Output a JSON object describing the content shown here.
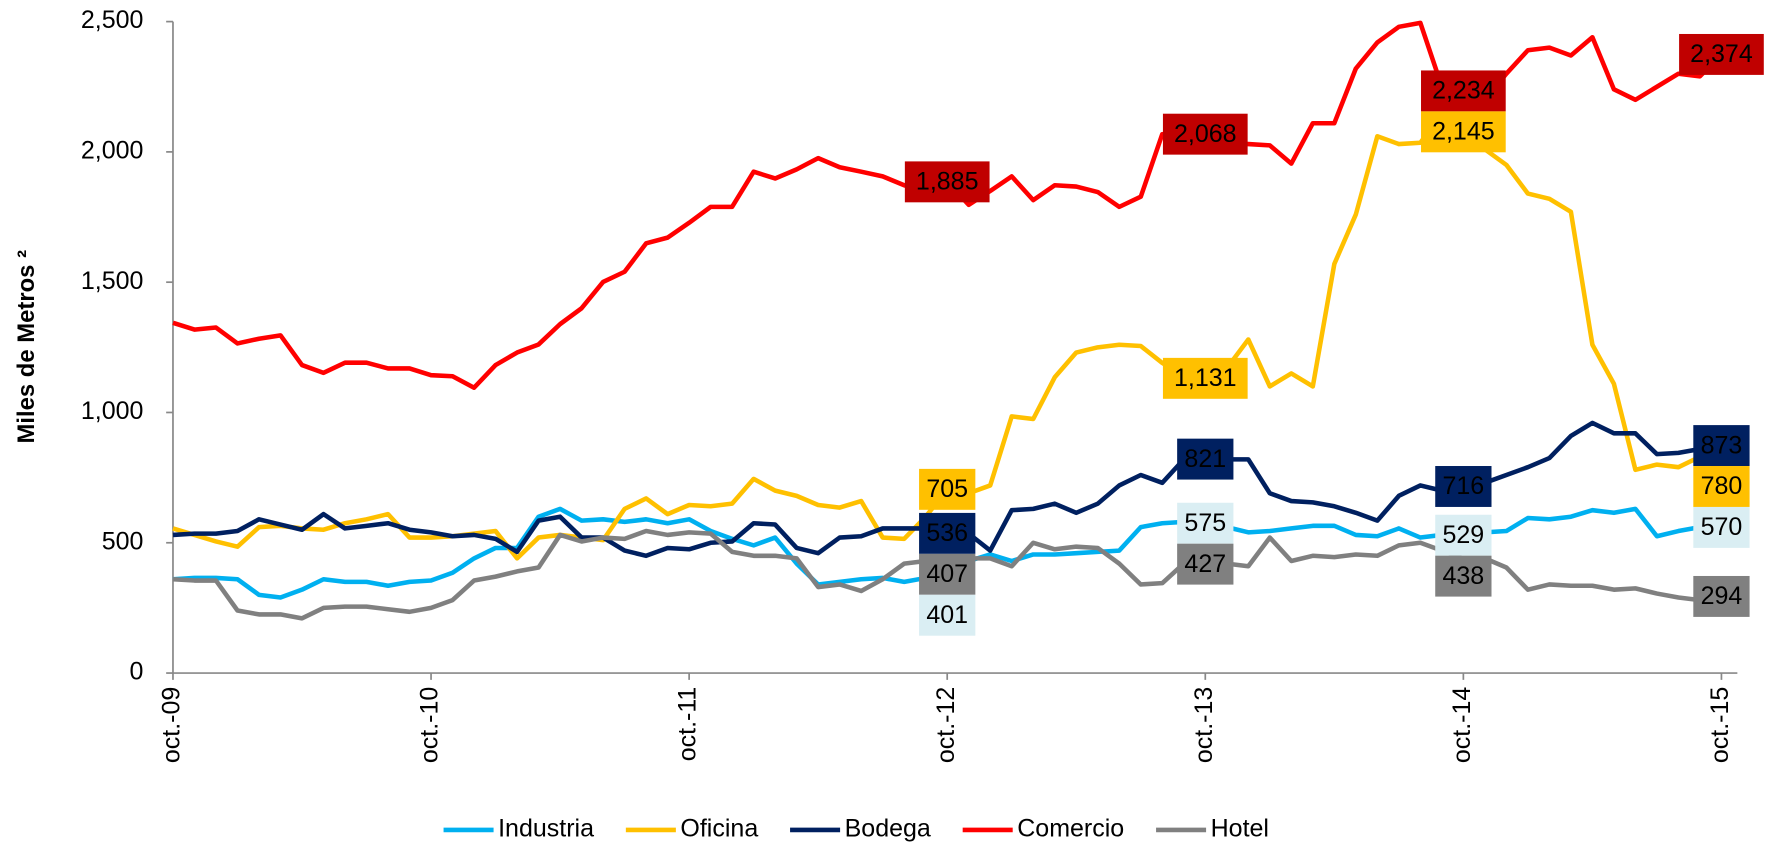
{
  "chart_data": {
    "type": "line",
    "y_label": "Miles de Metros ²",
    "categories": [
      "oct.-09",
      null,
      null,
      null,
      null,
      null,
      null,
      null,
      null,
      null,
      null,
      null,
      "oct.-10",
      null,
      null,
      null,
      null,
      null,
      null,
      null,
      null,
      null,
      null,
      null,
      "oct.-11",
      null,
      null,
      null,
      null,
      null,
      null,
      null,
      null,
      null,
      null,
      null,
      "oct.-12",
      null,
      null,
      null,
      null,
      null,
      null,
      null,
      null,
      null,
      null,
      null,
      "oct.-13",
      null,
      null,
      null,
      null,
      null,
      null,
      null,
      null,
      null,
      null,
      null,
      "oct.-14",
      null,
      null,
      null,
      null,
      null,
      null,
      null,
      null,
      null,
      null,
      null,
      "oct.-15"
    ],
    "ylim": [
      0,
      2500
    ],
    "yticks": [
      0,
      {
        "value": 500,
        "label": "500"
      },
      {
        "value": 1000,
        "label": "1,000"
      },
      {
        "value": 1500,
        "label": "1,500"
      },
      {
        "value": 2000,
        "label": "2,000"
      },
      {
        "value": 2500,
        "label": "2,500"
      }
    ],
    "grid": false,
    "legend": "bottom",
    "series": [
      {
        "name": "Industria",
        "color": "#00b0f0",
        "label_fill": "#daeef3",
        "label_text": "#000000",
        "values": [
          360,
          365,
          365,
          360,
          300,
          290,
          320,
          360,
          350,
          350,
          335,
          350,
          355,
          385,
          440,
          480,
          480,
          600,
          630,
          585,
          590,
          580,
          590,
          575,
          590,
          545,
          515,
          490,
          520,
          420,
          340,
          350,
          360,
          365,
          350,
          365,
          401,
          430,
          455,
          430,
          455,
          455,
          460,
          465,
          470,
          560,
          575,
          580,
          575,
          560,
          540,
          545,
          555,
          565,
          565,
          530,
          525,
          555,
          520,
          530,
          529,
          540,
          545,
          595,
          590,
          600,
          625,
          615,
          630,
          525,
          545,
          560,
          570
        ],
        "value_labels": [
          null,
          null,
          null,
          null,
          null,
          null,
          null,
          null,
          null,
          null,
          null,
          null,
          null,
          null,
          null,
          null,
          null,
          null,
          null,
          null,
          null,
          null,
          null,
          null,
          null,
          null,
          null,
          null,
          null,
          null,
          null,
          null,
          null,
          null,
          null,
          null,
          "401",
          null,
          null,
          null,
          null,
          null,
          null,
          null,
          null,
          null,
          null,
          null,
          "575",
          null,
          null,
          null,
          null,
          null,
          null,
          null,
          null,
          null,
          null,
          null,
          "529",
          null,
          null,
          null,
          null,
          null,
          null,
          null,
          null,
          null,
          null,
          null,
          "570"
        ]
      },
      {
        "name": "Oficina",
        "color": "#ffc000",
        "label_fill": "#ffc000",
        "label_text": "#000000",
        "values": [
          555,
          530,
          505,
          485,
          560,
          565,
          555,
          550,
          575,
          590,
          610,
          520,
          520,
          525,
          535,
          545,
          440,
          520,
          530,
          520,
          510,
          630,
          670,
          610,
          645,
          640,
          650,
          745,
          700,
          680,
          645,
          635,
          660,
          520,
          515,
          600,
          705,
          690,
          720,
          985,
          975,
          1135,
          1230,
          1250,
          1260,
          1255,
          1190,
          1140,
          1131,
          1170,
          1280,
          1100,
          1150,
          1100,
          1570,
          1760,
          2060,
          2030,
          2035,
          2145,
          2145,
          2010,
          1950,
          1840,
          1820,
          1770,
          1260,
          1110,
          780,
          800,
          790,
          830,
          780
        ],
        "value_labels": [
          null,
          null,
          null,
          null,
          null,
          null,
          null,
          null,
          null,
          null,
          null,
          null,
          null,
          null,
          null,
          null,
          null,
          null,
          null,
          null,
          null,
          null,
          null,
          null,
          null,
          null,
          null,
          null,
          null,
          null,
          null,
          null,
          null,
          null,
          null,
          null,
          "705",
          null,
          null,
          null,
          null,
          null,
          null,
          null,
          null,
          null,
          null,
          null,
          "1,131",
          null,
          null,
          null,
          null,
          null,
          null,
          null,
          null,
          null,
          null,
          null,
          "2,145",
          null,
          null,
          null,
          null,
          null,
          null,
          null,
          null,
          null,
          null,
          null,
          "780"
        ]
      },
      {
        "name": "Bodega",
        "color": "#002060",
        "label_fill": "#002060",
        "label_text": "#ffffff",
        "values": [
          530,
          535,
          535,
          545,
          590,
          570,
          550,
          610,
          555,
          565,
          575,
          550,
          540,
          525,
          530,
          515,
          465,
          585,
          600,
          520,
          520,
          470,
          450,
          480,
          475,
          500,
          505,
          575,
          570,
          480,
          460,
          520,
          525,
          555,
          555,
          555,
          536,
          535,
          470,
          625,
          630,
          650,
          615,
          650,
          720,
          760,
          730,
          820,
          821,
          820,
          820,
          690,
          660,
          655,
          640,
          615,
          585,
          680,
          720,
          700,
          716,
          730,
          760,
          790,
          825,
          910,
          960,
          920,
          920,
          840,
          845,
          860,
          873
        ],
        "value_labels": [
          null,
          null,
          null,
          null,
          null,
          null,
          null,
          null,
          null,
          null,
          null,
          null,
          null,
          null,
          null,
          null,
          null,
          null,
          null,
          null,
          null,
          null,
          null,
          null,
          null,
          null,
          null,
          null,
          null,
          null,
          null,
          null,
          null,
          null,
          null,
          null,
          "536",
          null,
          null,
          null,
          null,
          null,
          null,
          null,
          null,
          null,
          null,
          null,
          "821",
          null,
          null,
          null,
          null,
          null,
          null,
          null,
          null,
          null,
          null,
          null,
          "716",
          null,
          null,
          null,
          null,
          null,
          null,
          null,
          null,
          null,
          null,
          null,
          "873"
        ]
      },
      {
        "name": "Comercio",
        "color": "#ff0000",
        "label_fill": "#c00000",
        "label_text": "#ffffff",
        "values": [
          1344,
          1318,
          1326,
          1265,
          1283,
          1296,
          1182,
          1152,
          1191,
          1191,
          1169,
          1169,
          1143,
          1139,
          1095,
          1182,
          1230,
          1261,
          1339,
          1400,
          1501,
          1540,
          1649,
          1671,
          1728,
          1789,
          1789,
          1924,
          1898,
          1933,
          1976,
          1941,
          1924,
          1906,
          1872,
          1850,
          1885,
          1797,
          1850,
          1906,
          1815,
          1872,
          1867,
          1846,
          1789,
          1828,
          2068,
          2040,
          2068,
          2035,
          2030,
          2025,
          1955,
          2110,
          2110,
          2320,
          2420,
          2480,
          2495,
          2250,
          2234,
          2200,
          2300,
          2390,
          2400,
          2370,
          2440,
          2240,
          2200,
          2250,
          2300,
          2290,
          2374
        ],
        "value_labels": [
          null,
          null,
          null,
          null,
          null,
          null,
          null,
          null,
          null,
          null,
          null,
          null,
          null,
          null,
          null,
          null,
          null,
          null,
          null,
          null,
          null,
          null,
          null,
          null,
          null,
          null,
          null,
          null,
          null,
          null,
          null,
          null,
          null,
          null,
          null,
          null,
          "1,885",
          null,
          null,
          null,
          null,
          null,
          null,
          null,
          null,
          null,
          null,
          null,
          "2,068",
          null,
          null,
          null,
          null,
          null,
          null,
          null,
          null,
          null,
          null,
          null,
          "2,234",
          null,
          null,
          null,
          null,
          null,
          null,
          null,
          null,
          null,
          null,
          null,
          "2,374"
        ]
      },
      {
        "name": "Hotel",
        "color": "#808080",
        "label_fill": "#808080",
        "label_text": "#ffffff",
        "values": [
          360,
          355,
          355,
          240,
          225,
          225,
          210,
          250,
          255,
          255,
          245,
          235,
          250,
          280,
          355,
          370,
          390,
          405,
          530,
          505,
          520,
          515,
          545,
          530,
          540,
          535,
          465,
          450,
          450,
          440,
          330,
          340,
          315,
          360,
          420,
          430,
          407,
          440,
          440,
          410,
          500,
          475,
          485,
          480,
          420,
          340,
          345,
          420,
          427,
          420,
          410,
          520,
          430,
          450,
          445,
          455,
          450,
          490,
          500,
          470,
          438,
          440,
          405,
          320,
          340,
          335,
          335,
          320,
          325,
          305,
          290,
          280,
          294
        ],
        "value_labels": [
          null,
          null,
          null,
          null,
          null,
          null,
          null,
          null,
          null,
          null,
          null,
          null,
          null,
          null,
          null,
          null,
          null,
          null,
          null,
          null,
          null,
          null,
          null,
          null,
          null,
          null,
          null,
          null,
          null,
          null,
          null,
          null,
          null,
          null,
          null,
          null,
          "407",
          null,
          null,
          null,
          null,
          null,
          null,
          null,
          null,
          null,
          null,
          null,
          "427",
          null,
          null,
          null,
          null,
          null,
          null,
          null,
          null,
          null,
          null,
          null,
          "438",
          null,
          null,
          null,
          null,
          null,
          null,
          null,
          null,
          null,
          null,
          null,
          "294"
        ]
      }
    ]
  }
}
